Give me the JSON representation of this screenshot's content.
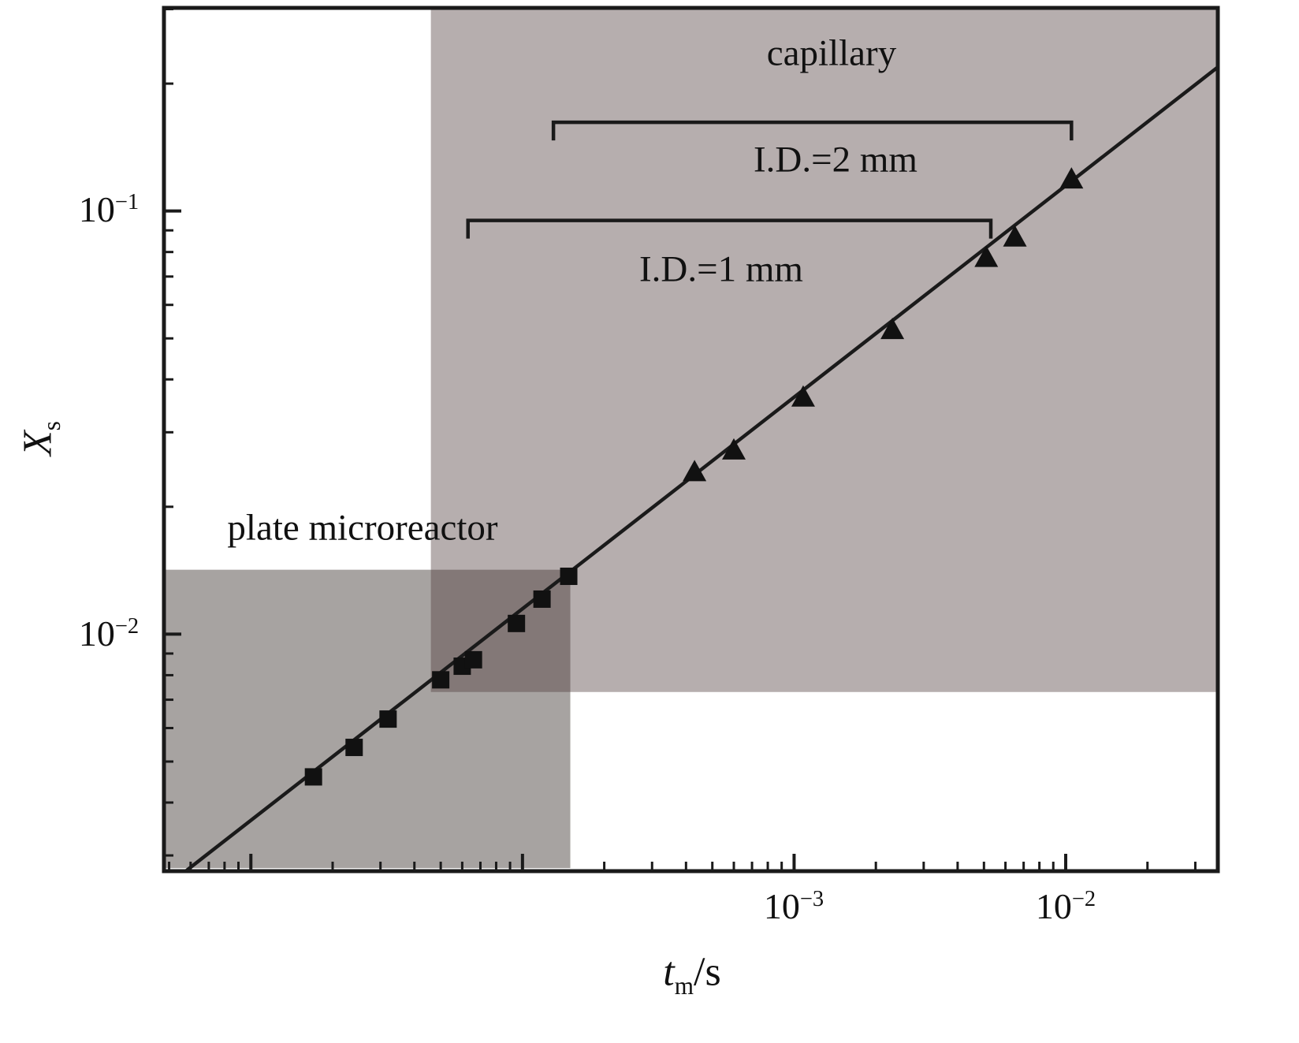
{
  "chart_data": {
    "type": "scatter",
    "scale": "log-log",
    "title": "",
    "xlabel": {
      "symbol": "t",
      "subscript": "m",
      "unit_suffix": "/s"
    },
    "ylabel": {
      "symbol": "X",
      "subscript": "s"
    },
    "x_axis": {
      "log10_range": [
        -5.32,
        -1.44
      ],
      "major_ticks": [
        {
          "value": 0.001,
          "mantissa": "10",
          "exponent": "−3"
        },
        {
          "value": 0.01,
          "mantissa": "10",
          "exponent": "−2"
        }
      ],
      "grid": false
    },
    "y_axis": {
      "log10_range": [
        -2.56,
        -0.52
      ],
      "major_ticks": [
        {
          "value": 0.1,
          "mantissa": "10",
          "exponent": "−1"
        },
        {
          "value": 0.01,
          "mantissa": "10",
          "exponent": "−2"
        }
      ],
      "grid": false
    },
    "colors": {
      "axis": "#1a1a1a",
      "fit_line": "#1a1a1a",
      "marker": "#111111",
      "background": "#ffffff"
    },
    "series": [
      {
        "name": "plate microreactor",
        "marker": "square",
        "points": [
          {
            "tm": 1.7e-05,
            "Xs": 0.0046
          },
          {
            "tm": 2.4e-05,
            "Xs": 0.0054
          },
          {
            "tm": 3.2e-05,
            "Xs": 0.0063
          },
          {
            "tm": 5e-05,
            "Xs": 0.0078
          },
          {
            "tm": 6e-05,
            "Xs": 0.0084
          },
          {
            "tm": 6.6e-05,
            "Xs": 0.0087
          },
          {
            "tm": 9.5e-05,
            "Xs": 0.0106
          },
          {
            "tm": 0.000118,
            "Xs": 0.0121
          },
          {
            "tm": 0.000148,
            "Xs": 0.0137
          }
        ]
      },
      {
        "name": "capillary",
        "marker": "triangle",
        "points": [
          {
            "tm": 0.00043,
            "Xs": 0.024
          },
          {
            "tm": 0.0006,
            "Xs": 0.027
          },
          {
            "tm": 0.00108,
            "Xs": 0.036
          },
          {
            "tm": 0.0023,
            "Xs": 0.052
          },
          {
            "tm": 0.0051,
            "Xs": 0.077
          },
          {
            "tm": 0.0065,
            "Xs": 0.086
          },
          {
            "tm": 0.0105,
            "Xs": 0.118
          }
        ]
      }
    ],
    "fit_line": {
      "description": "Xs proportional to tm^0.5",
      "slope_log": 0.5,
      "intercept_log": 0.06
    },
    "regions": [
      {
        "name": "plate microreactor",
        "tm_range": [
          4.8e-06,
          0.00015
        ],
        "Xs_range": [
          0.0028,
          0.0142
        ],
        "color": "rgba(60,52,46,0.45)"
      },
      {
        "name": "capillary",
        "tm_range": [
          4.6e-05,
          0.036
        ],
        "Xs_range": [
          0.0073,
          0.3
        ],
        "color": "rgba(82,62,62,0.42)"
      }
    ],
    "annotations": {
      "region_label_capillary": "capillary",
      "region_label_plate": "plate microreactor",
      "bracket_id2": {
        "label": "I.D.=2 mm",
        "t_start": 0.00013,
        "t_end": 0.0105,
        "Xs": 0.162
      },
      "bracket_id1": {
        "label": "I.D.=1 mm",
        "t_start": 6.3e-05,
        "t_end": 0.0053,
        "Xs": 0.095
      }
    }
  }
}
